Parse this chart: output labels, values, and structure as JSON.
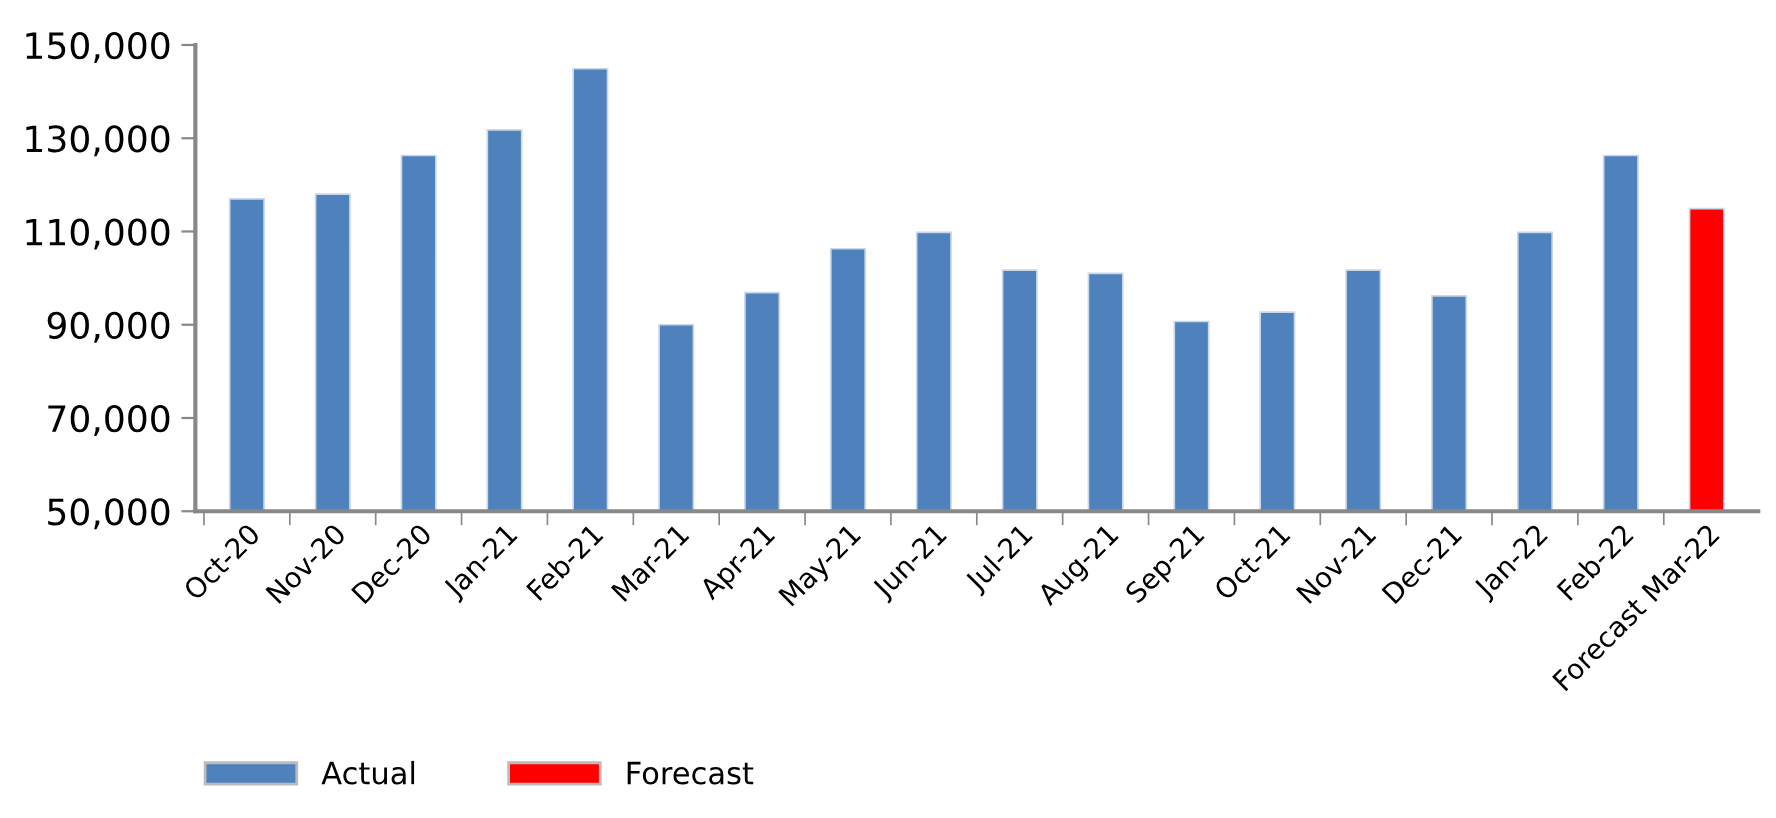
{
  "chart_data": {
    "type": "bar",
    "categories": [
      "Oct-20",
      "Nov-20",
      "Dec-20",
      "Jan-21",
      "Feb-21",
      "Mar-21",
      "Apr-21",
      "May-21",
      "Jun-21",
      "Jul-21",
      "Aug-21",
      "Sep-21",
      "Oct-21",
      "Nov-21",
      "Dec-21",
      "Jan-22",
      "Feb-22",
      "Forecast Mar-22"
    ],
    "series": [
      {
        "name": "Actual",
        "color": "#4f81bd",
        "values": [
          117000,
          118000,
          126300,
          131800,
          144900,
          90000,
          96900,
          106300,
          109800,
          101700,
          101000,
          90700,
          92700,
          101700,
          96200,
          109800,
          126300,
          null
        ]
      },
      {
        "name": "Forecast",
        "color": "#ff0000",
        "values": [
          null,
          null,
          null,
          null,
          null,
          null,
          null,
          null,
          null,
          null,
          null,
          null,
          null,
          null,
          null,
          null,
          null,
          114900
        ]
      }
    ],
    "stacked": true,
    "ylim": [
      50000,
      150000
    ],
    "yticks": [
      {
        "value": 50000,
        "label": "50,000"
      },
      {
        "value": 70000,
        "label": "70,000"
      },
      {
        "value": 90000,
        "label": "90,000"
      },
      {
        "value": 110000,
        "label": "110,000"
      },
      {
        "value": 130000,
        "label": "130,000"
      },
      {
        "value": 150000,
        "label": "150,000"
      }
    ],
    "grid": false,
    "legend": "bottom left"
  }
}
